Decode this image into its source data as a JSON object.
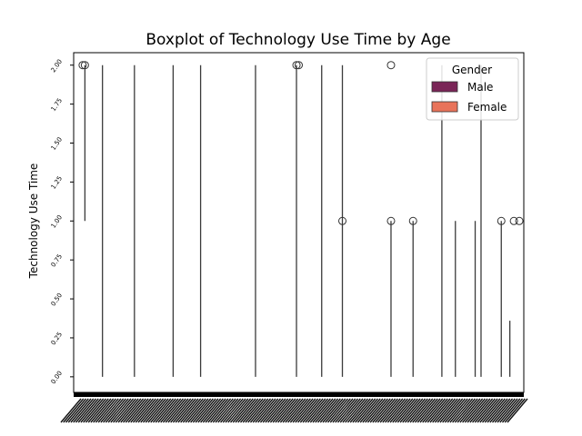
{
  "chart_data": {
    "type": "box",
    "title": "Boxplot of Technology Use Time by Age",
    "xlabel": "",
    "ylabel": "Technology Use Time",
    "ylim": [
      -0.1,
      2.08
    ],
    "y_ticks": [
      "0.00",
      "0.25",
      "0.50",
      "0.75",
      "1.00",
      "1.25",
      "1.50",
      "1.75",
      "2.00"
    ],
    "y_tick_values": [
      0,
      0.25,
      0.5,
      0.75,
      1.0,
      1.25,
      1.5,
      1.75,
      2.0
    ],
    "legend": {
      "title": "Gender",
      "position": "upper right",
      "entries": [
        {
          "name": "Male",
          "color": "#7a2557"
        },
        {
          "name": "Female",
          "color": "#e8735a"
        }
      ]
    },
    "outliers": [
      {
        "x": 0.02,
        "y": 2.0
      },
      {
        "x": 0.025,
        "y": 2.0
      },
      {
        "x": 0.495,
        "y": 2.0
      },
      {
        "x": 0.5,
        "y": 2.0
      },
      {
        "x": 0.705,
        "y": 2.0
      },
      {
        "x": 0.597,
        "y": 1.0
      },
      {
        "x": 0.705,
        "y": 1.0
      },
      {
        "x": 0.754,
        "y": 1.0
      },
      {
        "x": 0.95,
        "y": 1.0
      },
      {
        "x": 0.978,
        "y": 1.0
      },
      {
        "x": 0.99,
        "y": 1.0
      }
    ],
    "whiskers": [
      {
        "x": 0.025,
        "low": 1.0,
        "high": 2.0
      },
      {
        "x": 0.064,
        "low": 0.0,
        "high": 2.0
      },
      {
        "x": 0.135,
        "low": 0.0,
        "high": 2.0
      },
      {
        "x": 0.221,
        "low": 0.0,
        "high": 2.0
      },
      {
        "x": 0.282,
        "low": 0.0,
        "high": 2.0
      },
      {
        "x": 0.404,
        "low": 0.0,
        "high": 2.0
      },
      {
        "x": 0.495,
        "low": 0.0,
        "high": 2.0
      },
      {
        "x": 0.551,
        "low": 0.0,
        "high": 2.0
      },
      {
        "x": 0.597,
        "low": 0.0,
        "high": 2.0
      },
      {
        "x": 0.705,
        "low": 0.0,
        "high": 1.0
      },
      {
        "x": 0.754,
        "low": 0.0,
        "high": 1.0
      },
      {
        "x": 0.818,
        "low": 0.0,
        "high": 2.0
      },
      {
        "x": 0.848,
        "low": 0.0,
        "high": 1.0
      },
      {
        "x": 0.892,
        "low": 0.0,
        "high": 1.0
      },
      {
        "x": 0.905,
        "low": 0.0,
        "high": 2.0
      },
      {
        "x": 0.95,
        "low": 0.0,
        "high": 1.0
      },
      {
        "x": 0.969,
        "low": 0.0,
        "high": 0.36
      }
    ]
  }
}
